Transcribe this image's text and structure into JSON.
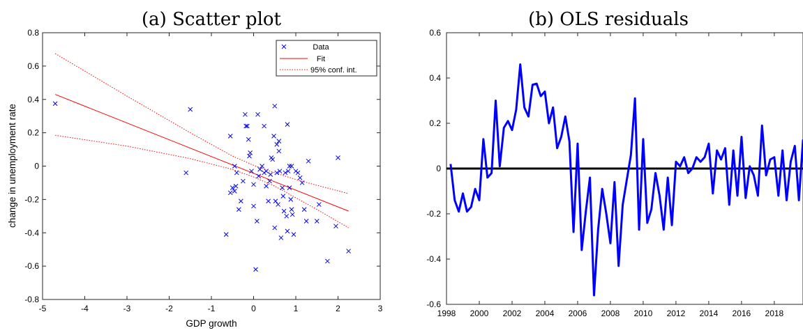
{
  "chart_data": [
    {
      "type": "scatter",
      "title": "(a) Scatter plot",
      "xlabel": "GDP growth",
      "ylabel": "change in unemployment rate",
      "xlim": [
        -5,
        3
      ],
      "ylim": [
        -0.8,
        0.8
      ],
      "xticks": [
        "-5",
        "-4",
        "-3",
        "-2",
        "-1",
        "0",
        "1",
        "2",
        "3"
      ],
      "yticks": [
        "-0.8",
        "-0.6",
        "-0.4",
        "-0.2",
        "0",
        "0.2",
        "0.4",
        "0.6",
        "0.8"
      ],
      "grid": false,
      "legend_position": "top-right",
      "legend": [
        "Data",
        "Fit",
        "95% conf. int."
      ],
      "colors": {
        "data": "#0000ff",
        "fit": "#ff0000",
        "ci": "#ff0000"
      },
      "fit": {
        "x": [
          -4.7,
          2.25
        ],
        "y": [
          0.43,
          -0.27
        ]
      },
      "ci_upper": {
        "x": [
          -4.7,
          -3.0,
          -1.5,
          -0.5,
          0.0,
          0.5,
          1.0,
          1.5,
          2.25
        ],
        "y": [
          0.675,
          0.42,
          0.2,
          0.06,
          0.005,
          -0.04,
          -0.08,
          -0.115,
          -0.165
        ]
      },
      "ci_lower": {
        "x": [
          -4.7,
          -3.0,
          -1.5,
          -0.5,
          0.0,
          0.5,
          1.0,
          1.5,
          2.25
        ],
        "y": [
          0.185,
          0.12,
          0.045,
          -0.02,
          -0.065,
          -0.12,
          -0.19,
          -0.26,
          -0.37
        ]
      },
      "points": [
        [
          -4.7,
          0.375
        ],
        [
          -1.6,
          -0.04
        ],
        [
          -1.5,
          0.34
        ],
        [
          -0.65,
          -0.41
        ],
        [
          -0.55,
          0.18
        ],
        [
          -0.55,
          -0.16
        ],
        [
          -0.5,
          -0.13
        ],
        [
          -0.45,
          -0.15
        ],
        [
          -0.45,
          0.0
        ],
        [
          -0.42,
          -0.12
        ],
        [
          -0.4,
          -0.04
        ],
        [
          -0.35,
          -0.26
        ],
        [
          -0.3,
          -0.21
        ],
        [
          -0.25,
          -0.09
        ],
        [
          -0.2,
          0.31
        ],
        [
          -0.18,
          0.24
        ],
        [
          -0.15,
          0.24
        ],
        [
          -0.12,
          0.16
        ],
        [
          -0.1,
          0.06
        ],
        [
          -0.08,
          0.08
        ],
        [
          -0.05,
          -0.03
        ],
        [
          0.0,
          -0.11
        ],
        [
          0.0,
          -0.24
        ],
        [
          0.05,
          -0.62
        ],
        [
          0.08,
          -0.33
        ],
        [
          0.1,
          0.31
        ],
        [
          0.12,
          -0.06
        ],
        [
          0.15,
          -0.02
        ],
        [
          0.2,
          0.0
        ],
        [
          0.25,
          0.24
        ],
        [
          0.25,
          -0.04
        ],
        [
          0.3,
          -0.12
        ],
        [
          0.3,
          -0.03
        ],
        [
          0.35,
          -0.21
        ],
        [
          0.38,
          -0.09
        ],
        [
          0.4,
          -0.05
        ],
        [
          0.42,
          0.05
        ],
        [
          0.45,
          0.04
        ],
        [
          0.48,
          0.18
        ],
        [
          0.5,
          0.36
        ],
        [
          0.5,
          -0.37
        ],
        [
          0.52,
          -0.21
        ],
        [
          0.55,
          0.13
        ],
        [
          0.55,
          -0.04
        ],
        [
          0.58,
          -0.23
        ],
        [
          0.6,
          0.09
        ],
        [
          0.6,
          0.15
        ],
        [
          0.62,
          -0.03
        ],
        [
          0.65,
          -0.43
        ],
        [
          0.68,
          -0.13
        ],
        [
          0.7,
          -0.18
        ],
        [
          0.72,
          -0.27
        ],
        [
          0.75,
          -0.04
        ],
        [
          0.78,
          -0.3
        ],
        [
          0.8,
          0.25
        ],
        [
          0.8,
          -0.39
        ],
        [
          0.82,
          -0.03
        ],
        [
          0.85,
          0.0
        ],
        [
          0.85,
          -0.13
        ],
        [
          0.88,
          -0.2
        ],
        [
          0.9,
          -0.26
        ],
        [
          0.9,
          0.0
        ],
        [
          0.92,
          -0.29
        ],
        [
          0.95,
          -0.41
        ],
        [
          1.0,
          -0.03
        ],
        [
          1.05,
          -0.04
        ],
        [
          1.1,
          -0.07
        ],
        [
          1.15,
          -0.1
        ],
        [
          1.2,
          -0.26
        ],
        [
          1.25,
          -0.33
        ],
        [
          1.3,
          0.03
        ],
        [
          1.5,
          -0.33
        ],
        [
          1.55,
          -0.23
        ],
        [
          1.75,
          -0.57
        ],
        [
          1.95,
          -0.36
        ],
        [
          2.0,
          0.05
        ],
        [
          2.25,
          -0.51
        ]
      ]
    },
    {
      "type": "line",
      "title": "(b) OLS residuals",
      "xlabel": "",
      "ylabel": "",
      "xlim": [
        1998,
        2019.75
      ],
      "ylim": [
        -0.6,
        0.6
      ],
      "xticks": [
        "1998",
        "2000",
        "2002",
        "2004",
        "2006",
        "2008",
        "2010",
        "2012",
        "2014",
        "2016",
        "2018"
      ],
      "yticks": [
        "-0.6",
        "-0.4",
        "-0.2",
        "0",
        "0.2",
        "0.4",
        "0.6"
      ],
      "grid": false,
      "colors": {
        "series": "#0000ff",
        "zero_line": "#000000"
      },
      "series": [
        {
          "x_start": 1998.25,
          "x_step": 0.25,
          "values": [
            0.02,
            -0.14,
            -0.19,
            -0.11,
            -0.19,
            -0.17,
            -0.09,
            -0.14,
            0.13,
            -0.04,
            -0.02,
            0.3,
            0.01,
            0.18,
            0.21,
            0.17,
            0.26,
            0.46,
            0.27,
            0.23,
            0.37,
            0.375,
            0.32,
            0.34,
            0.2,
            0.27,
            0.09,
            0.14,
            0.23,
            0.12,
            -0.28,
            0.11,
            -0.36,
            -0.19,
            -0.04,
            -0.56,
            -0.27,
            -0.09,
            -0.2,
            -0.33,
            -0.06,
            -0.43,
            -0.16,
            -0.05,
            0.06,
            0.31,
            -0.27,
            0.13,
            -0.24,
            -0.18,
            -0.02,
            -0.12,
            -0.27,
            -0.04,
            -0.25,
            0.03,
            0.01,
            0.05,
            -0.02,
            0.0,
            0.05,
            0.03,
            0.05,
            0.11,
            -0.11,
            0.08,
            0.04,
            0.09,
            -0.16,
            0.08,
            -0.12,
            0.14,
            -0.13,
            0.01,
            -0.03,
            -0.12,
            0.19,
            -0.03,
            0.04,
            0.05,
            -0.12,
            0.08,
            -0.14,
            0.03,
            0.1,
            -0.14,
            0.125,
            0.115
          ]
        }
      ],
      "zero_line": 0
    }
  ]
}
